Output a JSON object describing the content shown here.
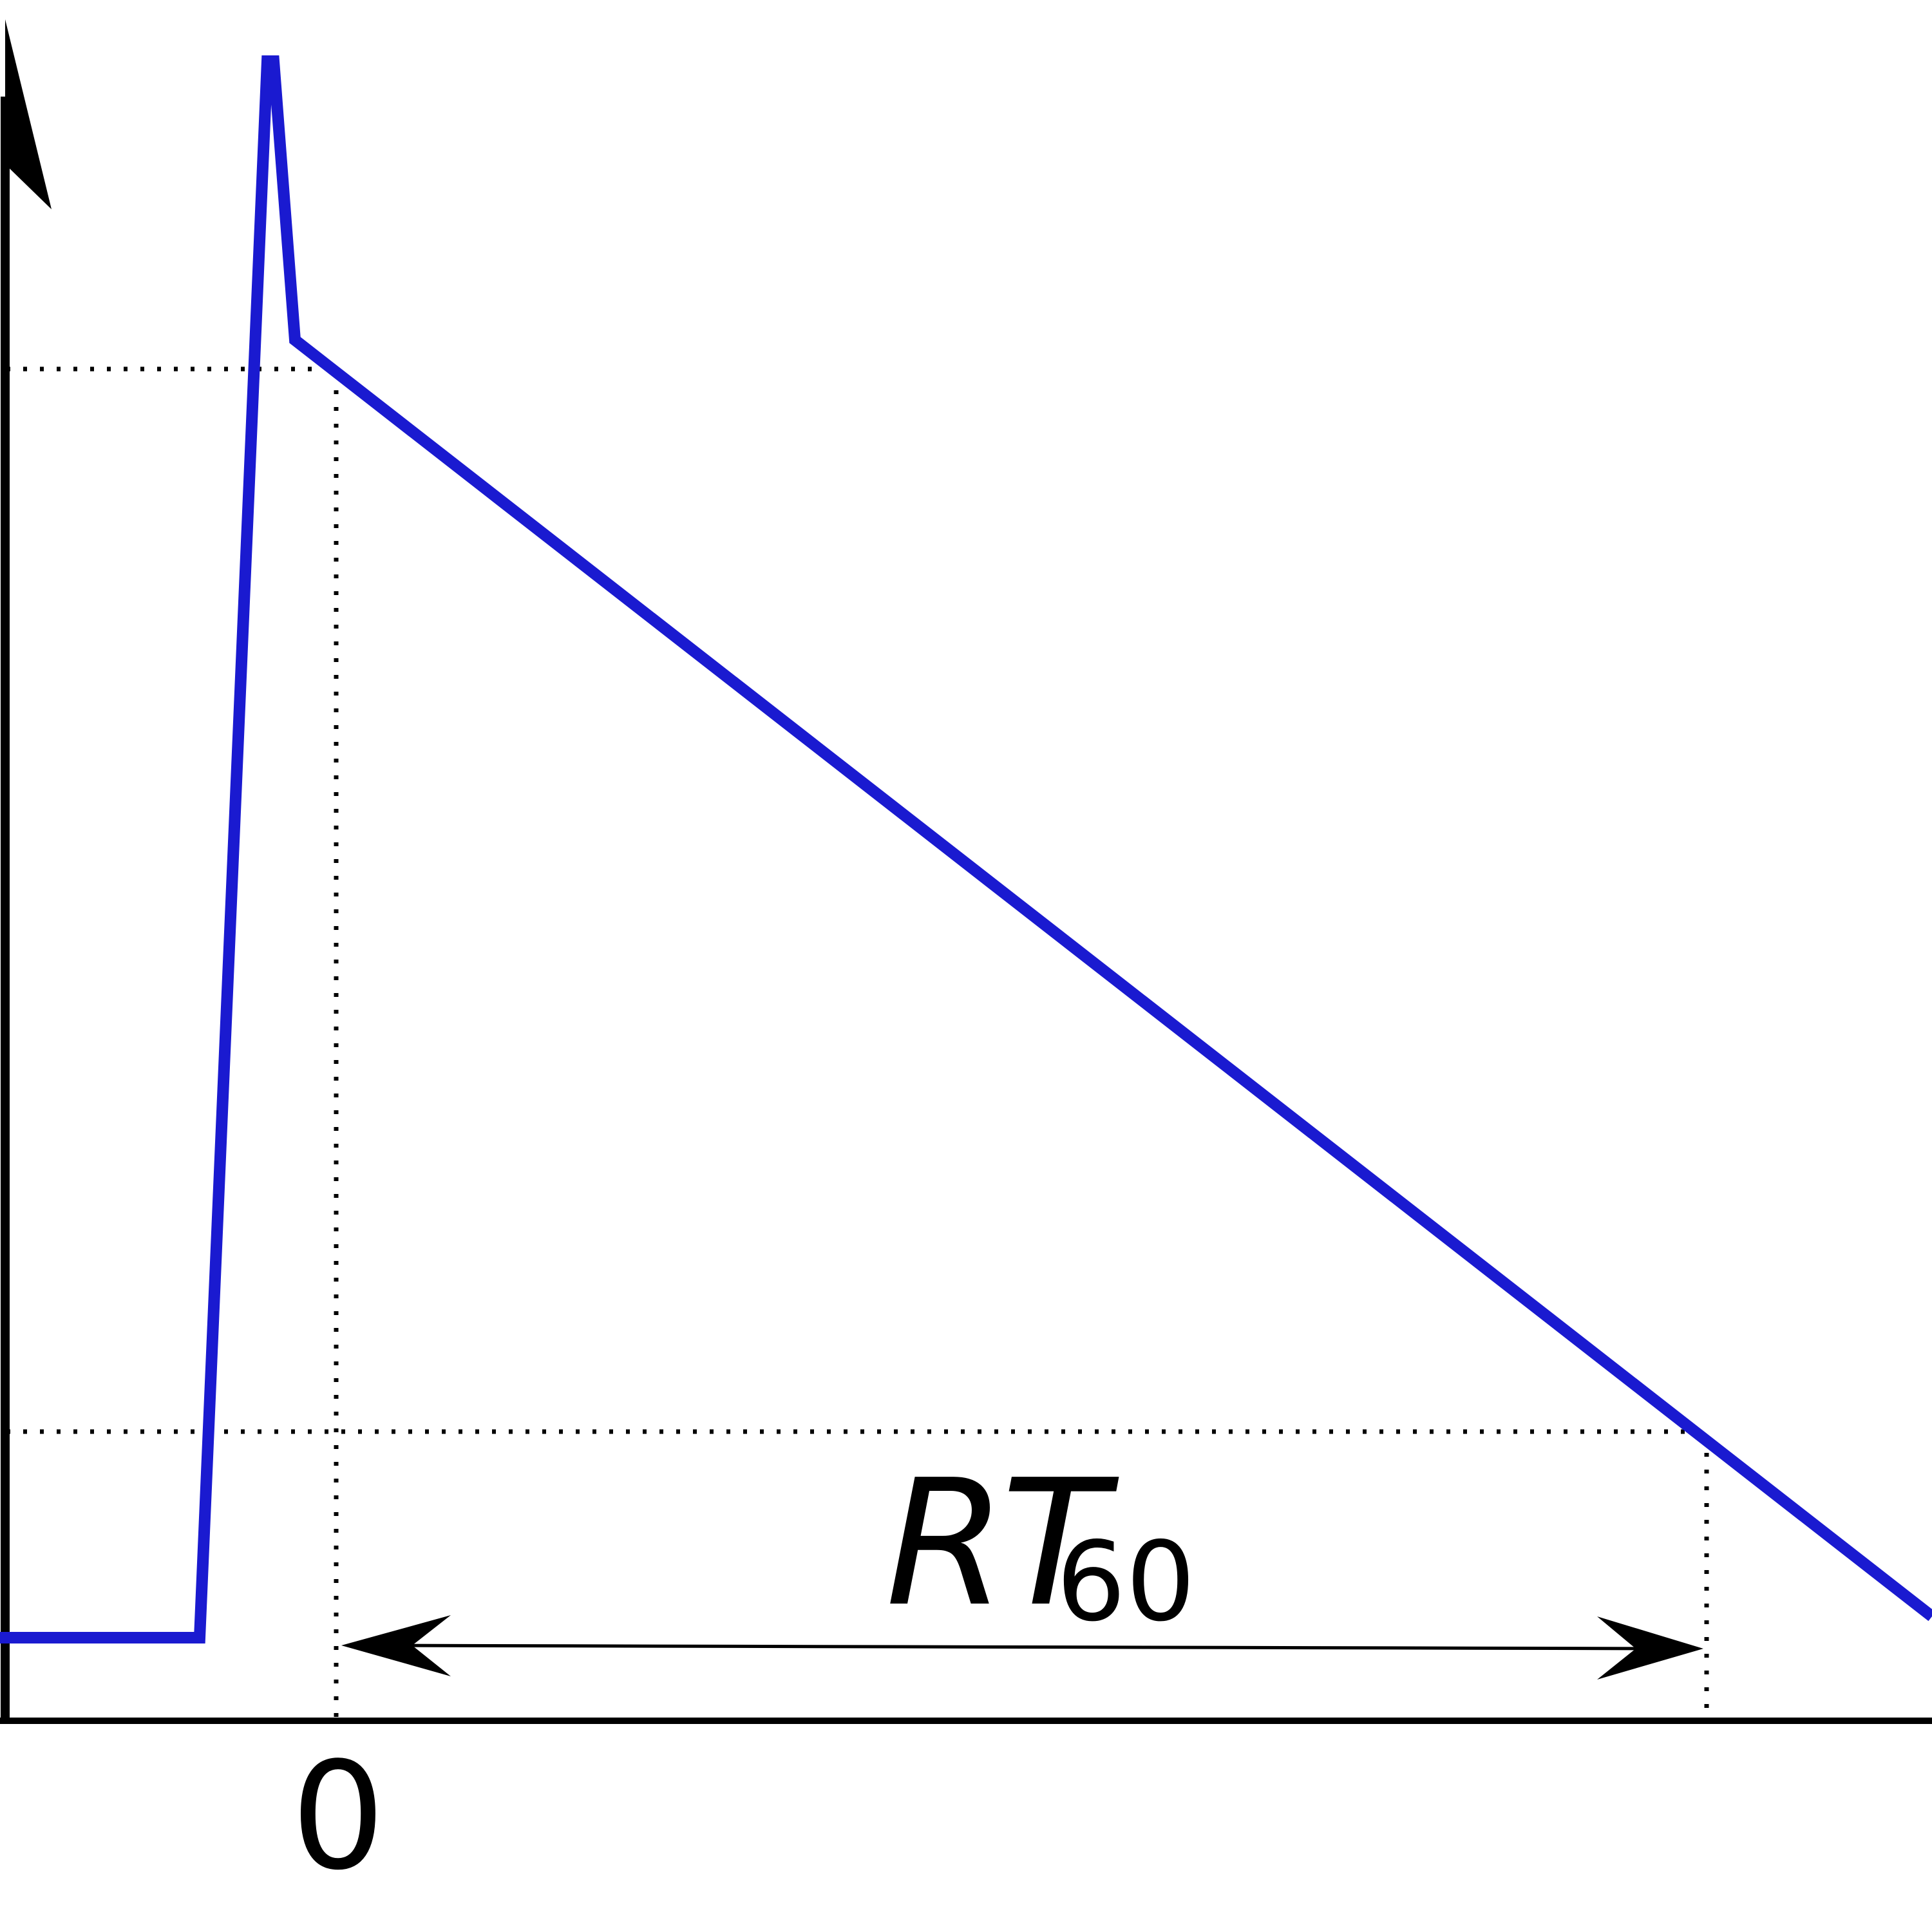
{
  "diagram": {
    "zero_label": "0",
    "rt_symbol_R": "R",
    "rt_symbol_T": "T",
    "rt_subscript": "60"
  },
  "colors": {
    "curve": "#1a1ad0",
    "axis": "#000000",
    "guides": "#000000"
  }
}
